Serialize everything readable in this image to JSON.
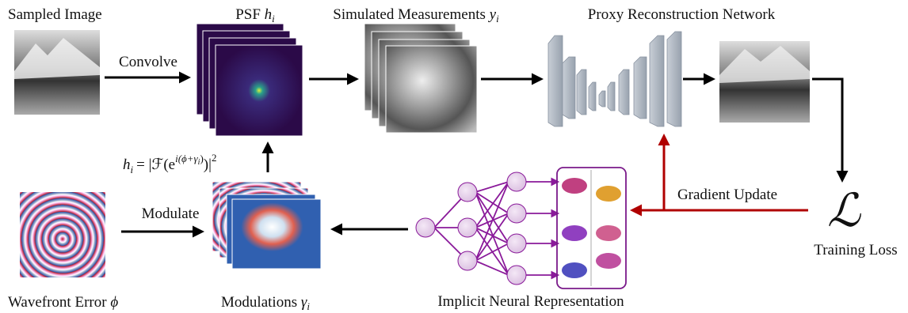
{
  "inputs": {
    "sampled_image": "Sampled Image",
    "wavefront_error": {
      "text": "Wavefront Error",
      "symbol": "ϕ"
    }
  },
  "operations": {
    "convolve": "Convolve",
    "modulate": "Modulate",
    "gradient_update": "Gradient Update"
  },
  "psf": {
    "text": "PSF",
    "symbol": "h",
    "subscript": "i"
  },
  "measurements": {
    "text": "Simulated Measurements",
    "symbol": "y",
    "subscript": "i"
  },
  "network": "Proxy Reconstruction Network",
  "modulations": {
    "text": "Modulations",
    "symbol": "γ",
    "subscript": "i"
  },
  "inr": "Implicit Neural Representation",
  "loss": {
    "symbol": "ℒ",
    "text": "Training Loss"
  },
  "formula": {
    "lhs": "h",
    "lhs_sub": "i",
    "eq": "= |ℱ(e",
    "exp": "i(ϕ+γ",
    "exp_sub": "i",
    "exp_close": ")",
    "close": ")|",
    "power": "2"
  }
}
